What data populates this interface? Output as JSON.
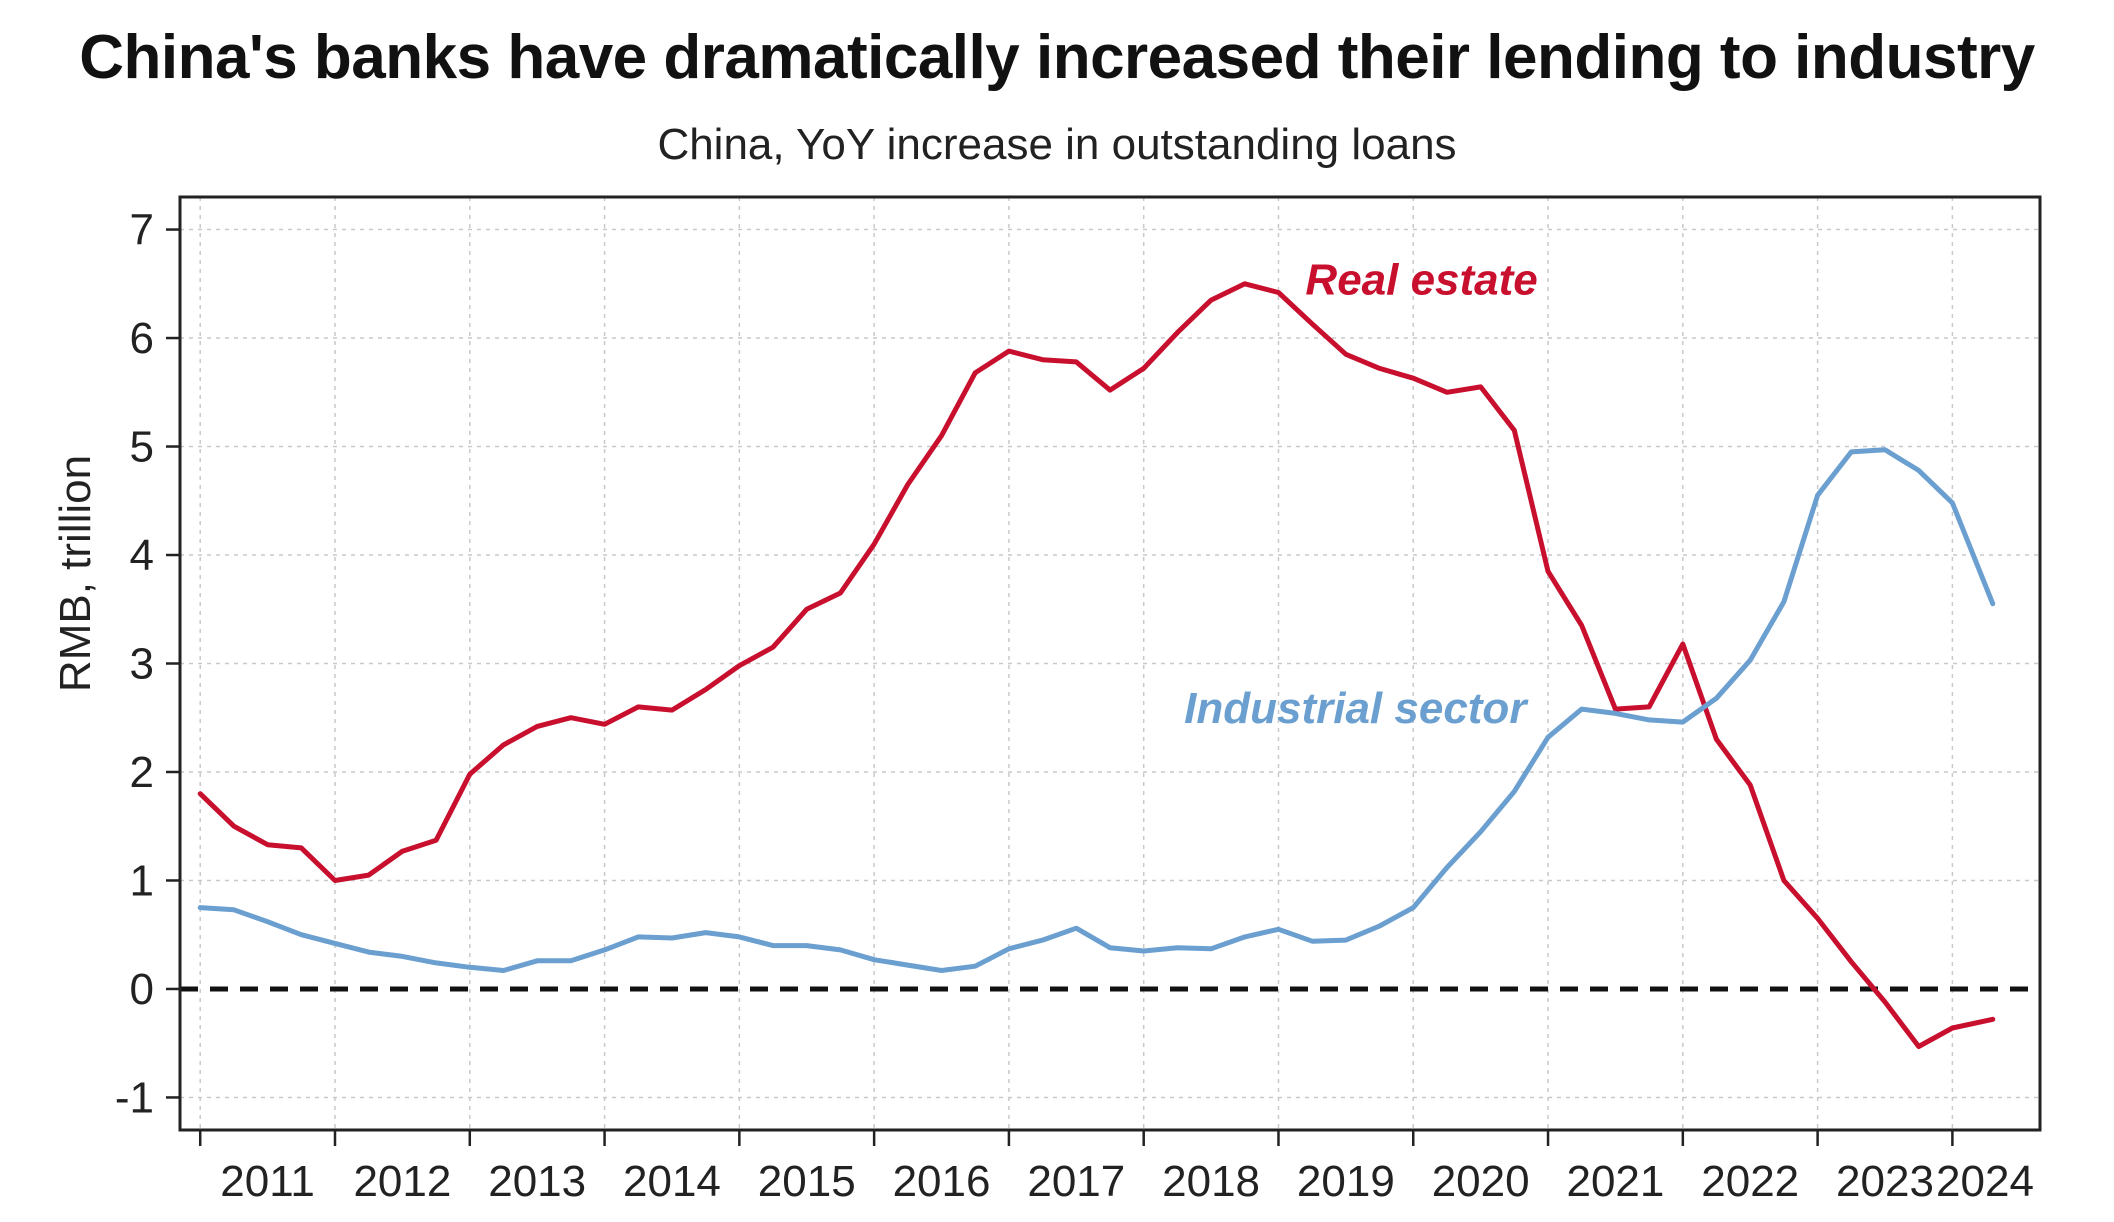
{
  "title": "China's banks have dramatically increased their lending to industry",
  "subtitle": "China, YoY increase in outstanding loans",
  "chart_data": {
    "type": "line",
    "title": "China's banks have dramatically increased their lending to industry",
    "subtitle": "China, YoY increase in outstanding loans",
    "xlabel": "",
    "ylabel": "RMB, trillion",
    "xlim": [
      2010.85,
      2024.65
    ],
    "ylim": [
      -1.3,
      7.3
    ],
    "x_ticks": [
      2011,
      2012,
      2013,
      2014,
      2015,
      2016,
      2017,
      2018,
      2019,
      2020,
      2021,
      2022,
      2023,
      2024
    ],
    "y_ticks": [
      -1,
      0,
      1,
      2,
      3,
      4,
      5,
      6,
      7
    ],
    "grid": true,
    "zero_line": "dashed",
    "legend": "inline labels",
    "series": [
      {
        "name": "Real estate",
        "color": "#c8102e",
        "label_at": [
          2019.2,
          6.4
        ],
        "points": [
          [
            2011.0,
            1.8
          ],
          [
            2011.25,
            1.5
          ],
          [
            2011.5,
            1.33
          ],
          [
            2011.75,
            1.3
          ],
          [
            2012.0,
            1.0
          ],
          [
            2012.25,
            1.05
          ],
          [
            2012.5,
            1.27
          ],
          [
            2012.75,
            1.37
          ],
          [
            2013.0,
            1.98
          ],
          [
            2013.25,
            2.25
          ],
          [
            2013.5,
            2.42
          ],
          [
            2013.75,
            2.5
          ],
          [
            2014.0,
            2.44
          ],
          [
            2014.25,
            2.6
          ],
          [
            2014.5,
            2.57
          ],
          [
            2014.75,
            2.76
          ],
          [
            2015.0,
            2.98
          ],
          [
            2015.25,
            3.15
          ],
          [
            2015.5,
            3.5
          ],
          [
            2015.75,
            3.65
          ],
          [
            2016.0,
            4.1
          ],
          [
            2016.25,
            4.65
          ],
          [
            2016.5,
            5.1
          ],
          [
            2016.75,
            5.68
          ],
          [
            2017.0,
            5.88
          ],
          [
            2017.25,
            5.8
          ],
          [
            2017.5,
            5.78
          ],
          [
            2017.75,
            5.52
          ],
          [
            2018.0,
            5.72
          ],
          [
            2018.25,
            6.05
          ],
          [
            2018.5,
            6.35
          ],
          [
            2018.75,
            6.5
          ],
          [
            2019.0,
            6.42
          ],
          [
            2019.25,
            6.13
          ],
          [
            2019.5,
            5.85
          ],
          [
            2019.75,
            5.72
          ],
          [
            2020.0,
            5.63
          ],
          [
            2020.25,
            5.5
          ],
          [
            2020.5,
            5.55
          ],
          [
            2020.75,
            5.15
          ],
          [
            2021.0,
            3.85
          ],
          [
            2021.25,
            3.35
          ],
          [
            2021.5,
            2.58
          ],
          [
            2021.75,
            2.6
          ],
          [
            2022.0,
            3.18
          ],
          [
            2022.25,
            2.3
          ],
          [
            2022.5,
            1.88
          ],
          [
            2022.75,
            1.0
          ],
          [
            2023.0,
            0.65
          ],
          [
            2023.25,
            0.25
          ],
          [
            2023.5,
            -0.12
          ],
          [
            2023.75,
            -0.53
          ],
          [
            2024.0,
            -0.36
          ],
          [
            2024.3,
            -0.28
          ]
        ]
      },
      {
        "name": "Industrial sector",
        "color": "#6a9fd0",
        "label_at": [
          2018.3,
          2.45
        ],
        "points": [
          [
            2011.0,
            0.75
          ],
          [
            2011.25,
            0.73
          ],
          [
            2011.5,
            0.62
          ],
          [
            2011.75,
            0.5
          ],
          [
            2012.0,
            0.42
          ],
          [
            2012.25,
            0.34
          ],
          [
            2012.5,
            0.3
          ],
          [
            2012.75,
            0.24
          ],
          [
            2013.0,
            0.2
          ],
          [
            2013.25,
            0.17
          ],
          [
            2013.5,
            0.26
          ],
          [
            2013.75,
            0.26
          ],
          [
            2014.0,
            0.36
          ],
          [
            2014.25,
            0.48
          ],
          [
            2014.5,
            0.47
          ],
          [
            2014.75,
            0.52
          ],
          [
            2015.0,
            0.48
          ],
          [
            2015.25,
            0.4
          ],
          [
            2015.5,
            0.4
          ],
          [
            2015.75,
            0.36
          ],
          [
            2016.0,
            0.27
          ],
          [
            2016.25,
            0.22
          ],
          [
            2016.5,
            0.17
          ],
          [
            2016.75,
            0.21
          ],
          [
            2017.0,
            0.37
          ],
          [
            2017.25,
            0.45
          ],
          [
            2017.5,
            0.56
          ],
          [
            2017.75,
            0.38
          ],
          [
            2018.0,
            0.35
          ],
          [
            2018.25,
            0.38
          ],
          [
            2018.5,
            0.37
          ],
          [
            2018.75,
            0.48
          ],
          [
            2019.0,
            0.55
          ],
          [
            2019.25,
            0.44
          ],
          [
            2019.5,
            0.45
          ],
          [
            2019.75,
            0.58
          ],
          [
            2020.0,
            0.75
          ],
          [
            2020.25,
            1.12
          ],
          [
            2020.5,
            1.45
          ],
          [
            2020.75,
            1.82
          ],
          [
            2021.0,
            2.32
          ],
          [
            2021.25,
            2.58
          ],
          [
            2021.5,
            2.54
          ],
          [
            2021.75,
            2.48
          ],
          [
            2022.0,
            2.46
          ],
          [
            2022.25,
            2.68
          ],
          [
            2022.5,
            3.03
          ],
          [
            2022.75,
            3.57
          ],
          [
            2023.0,
            4.55
          ],
          [
            2023.25,
            4.95
          ],
          [
            2023.5,
            4.97
          ],
          [
            2023.75,
            4.78
          ],
          [
            2024.0,
            4.48
          ],
          [
            2024.3,
            3.55
          ]
        ]
      }
    ]
  }
}
